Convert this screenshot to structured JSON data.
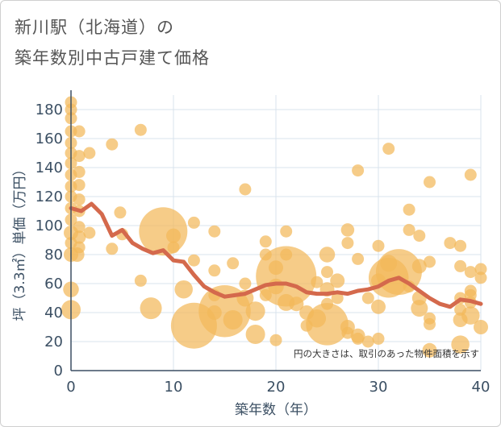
{
  "chart_data": {
    "type": "scatter",
    "title_line1": "新川駅（北海道）の",
    "title_line2": "築年数別中古戸建て価格",
    "xlabel": "築年数（年）",
    "ylabel": "坪（3.3㎡）単価（万円）",
    "note": "円の大きさは、取引のあった物件面積を示す",
    "xlim": [
      0,
      40
    ],
    "ylim": [
      0,
      190
    ],
    "xticks": [
      0,
      10,
      20,
      30,
      40
    ],
    "yticks": [
      0,
      20,
      40,
      60,
      80,
      100,
      120,
      140,
      160,
      180
    ],
    "colors": {
      "bubble": "#f2b85a",
      "line": "#d4694c",
      "grid": "#d9e3ec",
      "axis": "#3b4f63"
    },
    "bubbles": [
      {
        "x": 0,
        "y": 185,
        "s": 1
      },
      {
        "x": 0,
        "y": 180,
        "s": 1
      },
      {
        "x": 0,
        "y": 174,
        "s": 1
      },
      {
        "x": 0,
        "y": 165,
        "s": 1
      },
      {
        "x": 0,
        "y": 157,
        "s": 1
      },
      {
        "x": 0,
        "y": 150,
        "s": 1
      },
      {
        "x": 0,
        "y": 143,
        "s": 1
      },
      {
        "x": 0,
        "y": 135,
        "s": 1
      },
      {
        "x": 0,
        "y": 127,
        "s": 1
      },
      {
        "x": 0,
        "y": 120,
        "s": 1
      },
      {
        "x": 0,
        "y": 112,
        "s": 1
      },
      {
        "x": 0,
        "y": 104,
        "s": 1
      },
      {
        "x": 0,
        "y": 95,
        "s": 1.2
      },
      {
        "x": 0,
        "y": 88,
        "s": 1
      },
      {
        "x": 0,
        "y": 80,
        "s": 1.2
      },
      {
        "x": 0,
        "y": 56,
        "s": 1.3
      },
      {
        "x": 0,
        "y": 42,
        "s": 1.6
      },
      {
        "x": 0.8,
        "y": 165,
        "s": 1
      },
      {
        "x": 0.8,
        "y": 148,
        "s": 1
      },
      {
        "x": 0.8,
        "y": 137,
        "s": 1
      },
      {
        "x": 0.8,
        "y": 128,
        "s": 1
      },
      {
        "x": 0.8,
        "y": 118,
        "s": 1
      },
      {
        "x": 0.8,
        "y": 110,
        "s": 1
      },
      {
        "x": 0.8,
        "y": 99,
        "s": 1
      },
      {
        "x": 0.8,
        "y": 92,
        "s": 1.1
      },
      {
        "x": 0.8,
        "y": 85,
        "s": 1
      },
      {
        "x": 0.6,
        "y": 80,
        "s": 1.2
      },
      {
        "x": 1.8,
        "y": 150,
        "s": 1
      },
      {
        "x": 1.8,
        "y": 95,
        "s": 1
      },
      {
        "x": 4,
        "y": 156,
        "s": 1
      },
      {
        "x": 4,
        "y": 84,
        "s": 1
      },
      {
        "x": 4.8,
        "y": 109,
        "s": 1
      },
      {
        "x": 5,
        "y": 94,
        "s": 1
      },
      {
        "x": 6.8,
        "y": 166,
        "s": 1
      },
      {
        "x": 6.8,
        "y": 62,
        "s": 1
      },
      {
        "x": 7.8,
        "y": 43,
        "s": 1.8
      },
      {
        "x": 9,
        "y": 96,
        "s": 4
      },
      {
        "x": 10,
        "y": 93,
        "s": 1.2
      },
      {
        "x": 10,
        "y": 85,
        "s": 1
      },
      {
        "x": 11,
        "y": 56,
        "s": 1.5
      },
      {
        "x": 12,
        "y": 102,
        "s": 1
      },
      {
        "x": 12,
        "y": 76,
        "s": 1
      },
      {
        "x": 12,
        "y": 31,
        "s": 3.8
      },
      {
        "x": 14,
        "y": 96,
        "s": 1
      },
      {
        "x": 14,
        "y": 69,
        "s": 1
      },
      {
        "x": 14,
        "y": 52,
        "s": 1
      },
      {
        "x": 14,
        "y": 40,
        "s": 1.2
      },
      {
        "x": 15,
        "y": 41,
        "s": 4.3
      },
      {
        "x": 15.8,
        "y": 74,
        "s": 1
      },
      {
        "x": 15.8,
        "y": 35,
        "s": 1.6
      },
      {
        "x": 17,
        "y": 125,
        "s": 1
      },
      {
        "x": 17,
        "y": 60,
        "s": 1
      },
      {
        "x": 17,
        "y": 50,
        "s": 1.4
      },
      {
        "x": 18,
        "y": 41,
        "s": 1.6
      },
      {
        "x": 18,
        "y": 25,
        "s": 1.6
      },
      {
        "x": 19,
        "y": 89,
        "s": 1
      },
      {
        "x": 19,
        "y": 80,
        "s": 1
      },
      {
        "x": 19,
        "y": 52,
        "s": 1
      },
      {
        "x": 20,
        "y": 71,
        "s": 1.2
      },
      {
        "x": 20,
        "y": 58,
        "s": 1.3
      },
      {
        "x": 20,
        "y": 21,
        "s": 1
      },
      {
        "x": 21,
        "y": 96,
        "s": 1
      },
      {
        "x": 21,
        "y": 80,
        "s": 1
      },
      {
        "x": 21,
        "y": 65,
        "s": 5
      },
      {
        "x": 21,
        "y": 47,
        "s": 1.4
      },
      {
        "x": 22,
        "y": 46,
        "s": 1.2
      },
      {
        "x": 23,
        "y": 40,
        "s": 1.2
      },
      {
        "x": 23,
        "y": 31,
        "s": 1
      },
      {
        "x": 24,
        "y": 61,
        "s": 1
      },
      {
        "x": 24,
        "y": 36,
        "s": 1.5
      },
      {
        "x": 25,
        "y": 80,
        "s": 1.3
      },
      {
        "x": 25,
        "y": 68,
        "s": 1
      },
      {
        "x": 25,
        "y": 56,
        "s": 1.2
      },
      {
        "x": 25,
        "y": 46,
        "s": 1
      },
      {
        "x": 25,
        "y": 32,
        "s": 3.5
      },
      {
        "x": 26,
        "y": 62,
        "s": 1.2
      },
      {
        "x": 26,
        "y": 50,
        "s": 1
      },
      {
        "x": 27,
        "y": 97,
        "s": 1.1
      },
      {
        "x": 27,
        "y": 88,
        "s": 1
      },
      {
        "x": 27,
        "y": 30,
        "s": 1.2
      },
      {
        "x": 27,
        "y": 26,
        "s": 1
      },
      {
        "x": 28,
        "y": 138,
        "s": 1
      },
      {
        "x": 28,
        "y": 77,
        "s": 1
      },
      {
        "x": 28,
        "y": 24,
        "s": 1.2
      },
      {
        "x": 28,
        "y": 22,
        "s": 1
      },
      {
        "x": 29,
        "y": 50,
        "s": 1
      },
      {
        "x": 29,
        "y": 20,
        "s": 1
      },
      {
        "x": 30,
        "y": 86,
        "s": 1
      },
      {
        "x": 30,
        "y": 62,
        "s": 1.2
      },
      {
        "x": 30,
        "y": 44,
        "s": 1.2
      },
      {
        "x": 30,
        "y": 22,
        "s": 1
      },
      {
        "x": 31,
        "y": 153,
        "s": 1
      },
      {
        "x": 31,
        "y": 74,
        "s": 1.4
      },
      {
        "x": 31,
        "y": 64,
        "s": 3.3
      },
      {
        "x": 32,
        "y": 68,
        "s": 3.8
      },
      {
        "x": 33,
        "y": 111,
        "s": 1
      },
      {
        "x": 33,
        "y": 97,
        "s": 1
      },
      {
        "x": 33,
        "y": 58,
        "s": 1
      },
      {
        "x": 34,
        "y": 93,
        "s": 1
      },
      {
        "x": 34,
        "y": 72,
        "s": 1.2
      },
      {
        "x": 34,
        "y": 50,
        "s": 1.2
      },
      {
        "x": 34,
        "y": 43,
        "s": 1.4
      },
      {
        "x": 35,
        "y": 130,
        "s": 1
      },
      {
        "x": 35,
        "y": 75,
        "s": 1
      },
      {
        "x": 35,
        "y": 36,
        "s": 1
      },
      {
        "x": 35,
        "y": 32,
        "s": 1
      },
      {
        "x": 35,
        "y": 14,
        "s": 1.2
      },
      {
        "x": 37,
        "y": 88,
        "s": 1
      },
      {
        "x": 38,
        "y": 86,
        "s": 1
      },
      {
        "x": 38,
        "y": 72,
        "s": 1
      },
      {
        "x": 38,
        "y": 50,
        "s": 1
      },
      {
        "x": 38,
        "y": 42,
        "s": 1
      },
      {
        "x": 38,
        "y": 35,
        "s": 1.2
      },
      {
        "x": 38,
        "y": 18,
        "s": 1.5
      },
      {
        "x": 39,
        "y": 135,
        "s": 1
      },
      {
        "x": 39,
        "y": 68,
        "s": 1
      },
      {
        "x": 39,
        "y": 55,
        "s": 1
      },
      {
        "x": 39,
        "y": 52,
        "s": 1
      },
      {
        "x": 39,
        "y": 47,
        "s": 1
      },
      {
        "x": 39,
        "y": 38,
        "s": 1.5
      },
      {
        "x": 40,
        "y": 70,
        "s": 1
      },
      {
        "x": 40,
        "y": 64,
        "s": 1
      },
      {
        "x": 40,
        "y": 30,
        "s": 1.2
      }
    ],
    "trend": {
      "x": [
        0,
        1,
        2,
        3,
        4,
        5,
        6,
        7,
        8,
        9,
        10,
        11,
        12,
        13,
        14,
        15,
        16,
        17,
        18,
        19,
        20,
        21,
        22,
        23,
        24,
        25,
        26,
        27,
        28,
        29,
        30,
        31,
        32,
        33,
        34,
        35,
        36,
        37,
        38,
        39,
        40
      ],
      "y": [
        112,
        110,
        115,
        108,
        93,
        97,
        88,
        84,
        81,
        83,
        76,
        75,
        66,
        58,
        54,
        51,
        52,
        53,
        56,
        59,
        60,
        60,
        58,
        54,
        53,
        53,
        54,
        53,
        55,
        56,
        58,
        62,
        64,
        60,
        55,
        50,
        46,
        44,
        49,
        48,
        46
      ]
    }
  }
}
